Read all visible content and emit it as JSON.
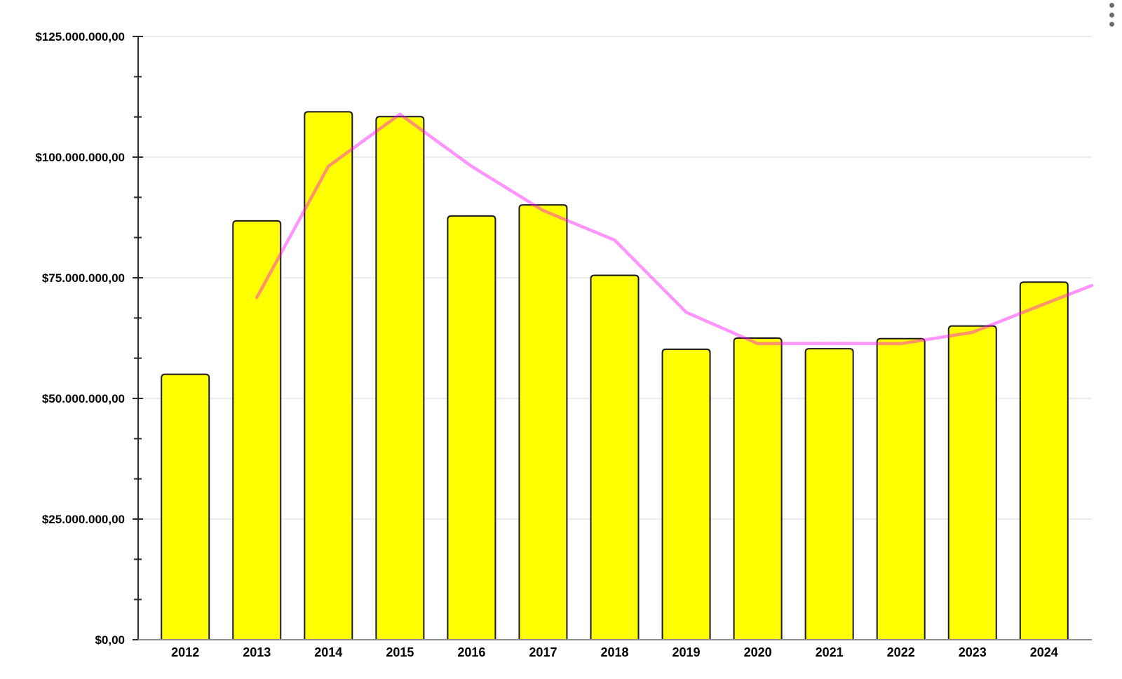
{
  "chart": {
    "title": "",
    "legend": "none",
    "background_color": "#ffffff",
    "options_menu": {
      "icon": "kebab-menu",
      "dot_color": "#6e6e6e"
    },
    "chart_data": {
      "type": "bar",
      "combo": "bar-with-line-overlay",
      "categories": [
        "2012",
        "2013",
        "2014",
        "2015",
        "2016",
        "2017",
        "2018",
        "2019",
        "2020",
        "2021",
        "2022",
        "2023",
        "2024"
      ],
      "series": [
        {
          "name": "annual-value-bars",
          "type": "bar",
          "fill_color": "#ffff00",
          "border_color": "#1a1a1a",
          "values": [
            55000000,
            86800000,
            109400000,
            108400000,
            87800000,
            90100000,
            75500000,
            60200000,
            62500000,
            60300000,
            62400000,
            65000000,
            74100000
          ]
        },
        {
          "name": "trendline-2-period-moving-average",
          "type": "line",
          "line_color": "#ff00ff",
          "line_opacity": 0.42,
          "values": [
            null,
            70900000,
            98100000,
            108900000,
            98100000,
            88950000,
            82800000,
            67850000,
            61350000,
            61400000,
            61350000,
            63700000,
            69550000
          ],
          "extends_to_plot_right_edge": true,
          "edge_extension_value": 73400000
        }
      ],
      "y_axis": {
        "min": 0,
        "max": 125000000,
        "major_step": 25000000,
        "minor_divisions_per_major": 3,
        "tick_labels": [
          "$0,00",
          "$25.000.000,00",
          "$50.000.000,00",
          "$75.000.000,00",
          "$100.000.000,00",
          "$125.000.000,00"
        ],
        "label_color": "#000000",
        "axis_color": "#2a2a2a"
      },
      "x_axis": {
        "labels": [
          "2012",
          "2013",
          "2014",
          "2015",
          "2016",
          "2017",
          "2018",
          "2019",
          "2020",
          "2021",
          "2022",
          "2023",
          "2024"
        ],
        "baseline_color": "#8c8c8c",
        "label_color": "#000000"
      },
      "grid": {
        "horizontal_major": true,
        "vertical": false,
        "gridline_color": "#d9d9d9"
      }
    }
  }
}
